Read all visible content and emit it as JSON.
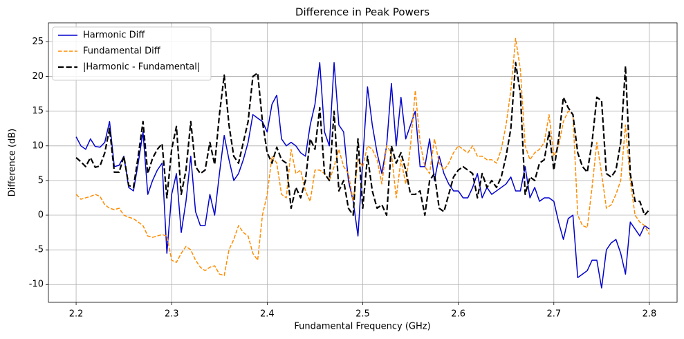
{
  "chart_data": {
    "type": "line",
    "title": "Difference in Peak Powers",
    "xlabel": "Fundamental Frequency (GHz)",
    "ylabel": "Difference (dB)",
    "x": [
      2.2,
      2.205,
      2.21,
      2.215,
      2.22,
      2.225,
      2.23,
      2.235,
      2.24,
      2.245,
      2.25,
      2.255,
      2.26,
      2.265,
      2.27,
      2.275,
      2.28,
      2.285,
      2.29,
      2.295,
      2.3,
      2.305,
      2.31,
      2.315,
      2.32,
      2.325,
      2.33,
      2.335,
      2.34,
      2.345,
      2.35,
      2.355,
      2.36,
      2.365,
      2.37,
      2.375,
      2.38,
      2.385,
      2.39,
      2.395,
      2.4,
      2.405,
      2.41,
      2.415,
      2.42,
      2.425,
      2.43,
      2.435,
      2.44,
      2.445,
      2.45,
      2.455,
      2.46,
      2.465,
      2.47,
      2.475,
      2.48,
      2.485,
      2.49,
      2.495,
      2.5,
      2.505,
      2.51,
      2.515,
      2.52,
      2.525,
      2.53,
      2.535,
      2.54,
      2.545,
      2.55,
      2.555,
      2.56,
      2.565,
      2.57,
      2.575,
      2.58,
      2.585,
      2.59,
      2.595,
      2.6,
      2.605,
      2.61,
      2.615,
      2.62,
      2.625,
      2.63,
      2.635,
      2.64,
      2.645,
      2.65,
      2.655,
      2.66,
      2.665,
      2.67,
      2.675,
      2.68,
      2.685,
      2.69,
      2.695,
      2.7,
      2.705,
      2.71,
      2.715,
      2.72,
      2.725,
      2.73,
      2.735,
      2.74,
      2.745,
      2.75,
      2.755,
      2.76,
      2.765,
      2.77,
      2.775,
      2.78,
      2.785,
      2.79,
      2.795,
      2.8
    ],
    "series": [
      {
        "name": "Harmonic Diff",
        "color": "#0000cd",
        "linestyle": "solid",
        "linewidth": 1.5,
        "values": [
          11.3,
          10.0,
          9.5,
          11.0,
          9.9,
          9.8,
          10.5,
          13.5,
          7.0,
          7.2,
          8.5,
          4.0,
          3.5,
          7.5,
          12.0,
          3.0,
          5.0,
          6.5,
          7.5,
          -5.5,
          3.0,
          6.0,
          -2.5,
          2.0,
          8.5,
          0.5,
          -1.5,
          -1.5,
          3.0,
          0.0,
          6.0,
          11.5,
          8.0,
          5.0,
          6.0,
          8.0,
          10.5,
          14.5,
          14.0,
          13.5,
          12.0,
          16.0,
          17.3,
          11.0,
          10.0,
          10.5,
          10.0,
          9.0,
          8.5,
          13.0,
          16.0,
          22.0,
          12.0,
          10.0,
          22.0,
          13.0,
          12.0,
          5.0,
          2.0,
          -3.0,
          8.0,
          18.5,
          13.0,
          9.0,
          6.0,
          10.0,
          19.0,
          10.0,
          17.0,
          11.0,
          13.0,
          15.0,
          7.0,
          7.0,
          11.0,
          5.0,
          8.5,
          6.0,
          4.5,
          3.5,
          3.5,
          2.5,
          2.5,
          4.0,
          6.0,
          2.5,
          4.0,
          3.0,
          3.5,
          4.0,
          4.5,
          5.5,
          3.5,
          3.5,
          7.0,
          2.5,
          4.0,
          2.0,
          2.5,
          2.5,
          2.0,
          -1.0,
          -3.5,
          -0.5,
          0.0,
          -9.0,
          -8.5,
          -8.0,
          -6.5,
          -6.5,
          -10.5,
          -5.0,
          -4.0,
          -3.5,
          -5.5,
          -8.5,
          -1.0,
          -2.0,
          -3.0,
          -1.5,
          -2.0
        ]
      },
      {
        "name": "Fundamental Diff",
        "color": "#ff8c00",
        "linestyle": "dashed",
        "linewidth": 1.5,
        "values": [
          3.0,
          2.3,
          2.5,
          2.7,
          3.0,
          2.7,
          1.5,
          1.0,
          0.8,
          1.0,
          0.0,
          -0.3,
          -0.5,
          -1.0,
          -1.5,
          -3.0,
          -3.2,
          -3.0,
          -2.8,
          -3.0,
          -6.5,
          -6.8,
          -5.5,
          -4.5,
          -5.0,
          -6.5,
          -7.5,
          -8.0,
          -7.5,
          -7.3,
          -8.5,
          -8.7,
          -5.0,
          -3.5,
          -1.5,
          -2.5,
          -3.0,
          -5.5,
          -6.5,
          0.0,
          3.0,
          8.5,
          7.5,
          3.0,
          2.5,
          9.5,
          6.0,
          6.5,
          3.5,
          2.0,
          6.5,
          6.5,
          6.0,
          5.0,
          7.0,
          9.5,
          7.0,
          6.0,
          2.0,
          8.0,
          7.0,
          10.0,
          9.5,
          8.0,
          4.5,
          10.0,
          9.0,
          2.5,
          8.0,
          4.5,
          10.0,
          18.0,
          10.5,
          7.0,
          6.0,
          11.0,
          7.5,
          6.5,
          7.5,
          9.0,
          10.0,
          9.5,
          9.0,
          10.0,
          8.5,
          8.5,
          8.0,
          8.0,
          7.5,
          9.5,
          13.0,
          18.0,
          25.5,
          21.0,
          10.0,
          8.0,
          9.0,
          9.5,
          10.5,
          14.5,
          8.5,
          10.0,
          13.5,
          15.0,
          14.5,
          0.0,
          -1.5,
          -1.8,
          4.0,
          10.5,
          6.0,
          1.0,
          1.5,
          3.0,
          5.0,
          13.0,
          5.0,
          0.0,
          -1.0,
          -1.5,
          -2.8
        ]
      },
      {
        "name": "|Harmonic - Fundamental|",
        "color": "#000000",
        "linestyle": "dashed",
        "linewidth": 2.2,
        "values": [
          8.3,
          7.7,
          7.0,
          8.3,
          6.9,
          7.1,
          9.0,
          12.5,
          6.2,
          6.2,
          8.5,
          4.3,
          4.0,
          8.5,
          13.5,
          6.0,
          8.2,
          9.5,
          10.3,
          2.5,
          9.5,
          12.8,
          3.0,
          6.5,
          13.5,
          7.0,
          6.0,
          6.5,
          10.5,
          7.3,
          14.5,
          20.2,
          13.0,
          8.5,
          7.5,
          10.5,
          13.5,
          20.0,
          20.5,
          13.5,
          9.0,
          7.5,
          9.8,
          8.0,
          7.5,
          1.0,
          4.0,
          2.5,
          5.0,
          11.0,
          9.5,
          15.5,
          6.0,
          5.0,
          15.0,
          3.5,
          5.0,
          1.0,
          0.0,
          11.0,
          1.0,
          8.5,
          3.5,
          1.0,
          1.5,
          0.0,
          10.0,
          7.5,
          9.0,
          6.5,
          3.0,
          3.0,
          3.5,
          0.0,
          5.0,
          6.0,
          1.0,
          0.5,
          3.0,
          5.5,
          6.5,
          7.0,
          6.5,
          6.0,
          2.5,
          6.0,
          4.0,
          5.0,
          4.0,
          5.5,
          8.5,
          12.5,
          22.0,
          17.5,
          3.0,
          5.5,
          5.0,
          7.5,
          8.0,
          12.0,
          6.5,
          11.0,
          17.0,
          15.5,
          14.5,
          9.0,
          7.0,
          6.2,
          10.5,
          17.0,
          16.5,
          6.0,
          5.5,
          6.5,
          10.5,
          21.5,
          6.0,
          2.0,
          2.0,
          0.0,
          0.8
        ]
      }
    ],
    "xlim": [
      2.171,
      2.829
    ],
    "xticks": [
      2.2,
      2.3,
      2.4,
      2.5,
      2.6,
      2.7,
      2.8
    ],
    "ylim": [
      -12.57,
      27.74
    ],
    "yticks": [
      -10,
      -5,
      0,
      5,
      10,
      15,
      20,
      25
    ],
    "grid": true,
    "legend": "upper left"
  }
}
